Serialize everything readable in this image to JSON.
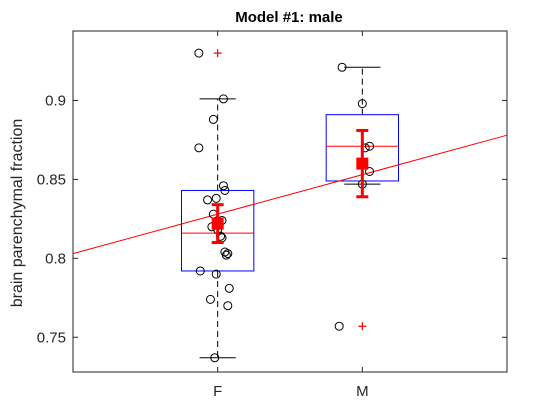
{
  "chart_data": {
    "type": "boxplot",
    "title": "Model #1: male",
    "xlabel": "",
    "ylabel": "brain parenchymal fraction",
    "categories": [
      "F",
      "M"
    ],
    "ylim": [
      0.728,
      0.944
    ],
    "yticks": [
      0.75,
      0.8,
      0.85,
      0.9
    ],
    "ytick_labels": [
      "0.75",
      "0.8",
      "0.85",
      "0.9"
    ],
    "grid": false,
    "box_color": "#0000ff",
    "median_color": "#ff0000",
    "whisker_color": "#000000",
    "outlier_color": "#ff0000",
    "point_color": "#000000",
    "mean_color": "#ff0000",
    "fit_line_color": "#ff0000",
    "boxes": [
      {
        "category": "F",
        "q1": 0.792,
        "median": 0.816,
        "q3": 0.843,
        "whisker_low": 0.737,
        "whisker_high": 0.901,
        "outliers": [
          0.93
        ],
        "mean": 0.822,
        "error_low": 0.81,
        "error_high": 0.834
      },
      {
        "category": "M",
        "q1": 0.849,
        "median": 0.871,
        "q3": 0.891,
        "whisker_low": 0.847,
        "whisker_high": 0.921,
        "outliers": [
          0.757
        ],
        "mean": 0.86,
        "error_low": 0.839,
        "error_high": 0.881
      }
    ],
    "points": [
      {
        "category": "F",
        "jitter": -0.13,
        "y": 0.93
      },
      {
        "category": "F",
        "jitter": 0.04,
        "y": 0.901
      },
      {
        "category": "F",
        "jitter": -0.03,
        "y": 0.888
      },
      {
        "category": "F",
        "jitter": -0.13,
        "y": 0.87
      },
      {
        "category": "F",
        "jitter": 0.04,
        "y": 0.846
      },
      {
        "category": "F",
        "jitter": 0.05,
        "y": 0.843
      },
      {
        "category": "F",
        "jitter": -0.07,
        "y": 0.837
      },
      {
        "category": "F",
        "jitter": -0.01,
        "y": 0.838
      },
      {
        "category": "F",
        "jitter": -0.03,
        "y": 0.828
      },
      {
        "category": "F",
        "jitter": 0.03,
        "y": 0.824
      },
      {
        "category": "F",
        "jitter": -0.04,
        "y": 0.82
      },
      {
        "category": "F",
        "jitter": 0.0,
        "y": 0.818
      },
      {
        "category": "F",
        "jitter": 0.02,
        "y": 0.814
      },
      {
        "category": "F",
        "jitter": 0.03,
        "y": 0.813
      },
      {
        "category": "F",
        "jitter": 0.05,
        "y": 0.804
      },
      {
        "category": "F",
        "jitter": 0.06,
        "y": 0.802
      },
      {
        "category": "F",
        "jitter": 0.07,
        "y": 0.803
      },
      {
        "category": "F",
        "jitter": -0.12,
        "y": 0.792
      },
      {
        "category": "F",
        "jitter": -0.01,
        "y": 0.79
      },
      {
        "category": "F",
        "jitter": 0.08,
        "y": 0.781
      },
      {
        "category": "F",
        "jitter": -0.05,
        "y": 0.774
      },
      {
        "category": "F",
        "jitter": 0.07,
        "y": 0.77
      },
      {
        "category": "F",
        "jitter": -0.02,
        "y": 0.737
      },
      {
        "category": "M",
        "jitter": -0.14,
        "y": 0.921
      },
      {
        "category": "M",
        "jitter": 0.0,
        "y": 0.898
      },
      {
        "category": "M",
        "jitter": 0.05,
        "y": 0.871
      },
      {
        "category": "M",
        "jitter": 0.02,
        "y": 0.87
      },
      {
        "category": "M",
        "jitter": 0.05,
        "y": 0.855
      },
      {
        "category": "M",
        "jitter": 0.0,
        "y": 0.847
      },
      {
        "category": "M",
        "jitter": -0.16,
        "y": 0.757
      }
    ],
    "fit_line": {
      "y_at_x0": 0.803,
      "y_at_x3": 0.878
    }
  }
}
